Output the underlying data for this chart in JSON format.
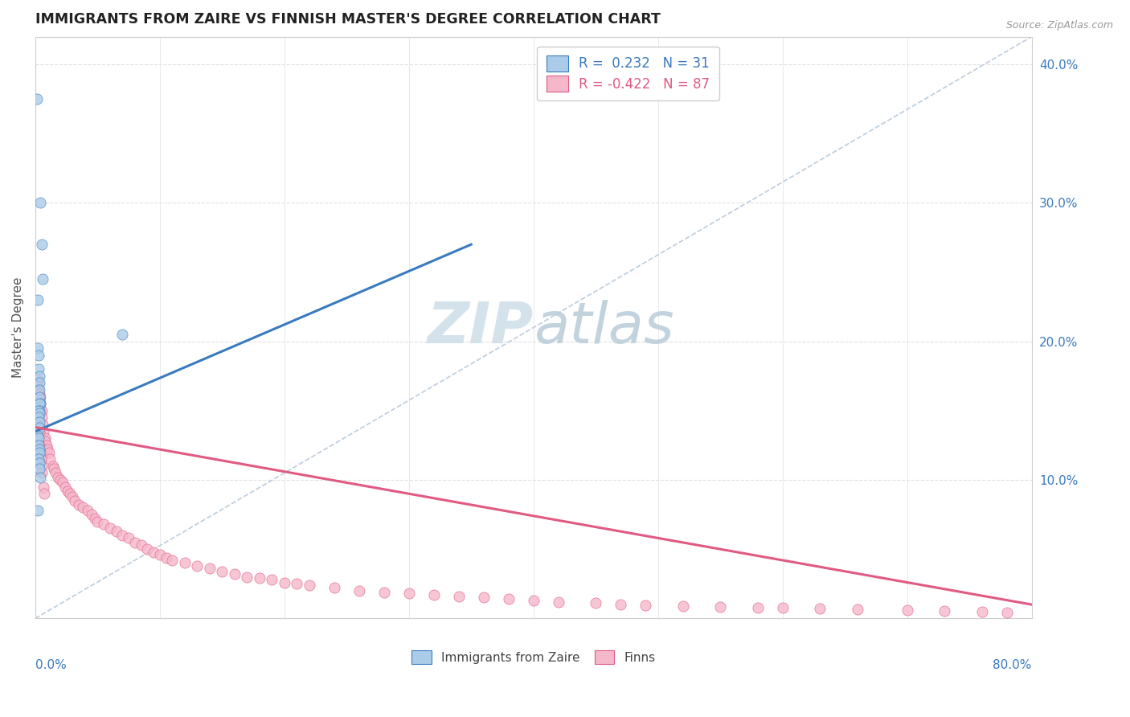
{
  "title": "IMMIGRANTS FROM ZAIRE VS FINNISH MASTER'S DEGREE CORRELATION CHART",
  "source_text": "Source: ZipAtlas.com",
  "ylabel": "Master's Degree",
  "legend_blue_label": "Immigrants from Zaire",
  "legend_pink_label": "Finns",
  "blue_color": "#aacce8",
  "pink_color": "#f5b8cb",
  "blue_line_color": "#3a7abf",
  "pink_line_color": "#e05a82",
  "dot_alpha": 0.8,
  "background_color": "#ffffff",
  "title_color": "#222222",
  "axis_color": "#cccccc",
  "grid_color": "#e0e0e0",
  "diag_color": "#bbccdd",
  "watermark_color": "#dde8f0",
  "blue_scatter_x": [
    0.15,
    0.42,
    0.55,
    0.6,
    0.18,
    0.22,
    0.25,
    0.28,
    0.3,
    0.32,
    0.35,
    0.3,
    0.38,
    0.3,
    0.32,
    0.28,
    0.33,
    0.25,
    0.3,
    0.35,
    0.2,
    0.28,
    7.0,
    0.28,
    0.32,
    0.3,
    0.25,
    0.3,
    0.32,
    0.38,
    0.22
  ],
  "blue_scatter_y": [
    37.5,
    30.0,
    27.0,
    24.5,
    23.0,
    19.5,
    19.0,
    18.0,
    17.5,
    17.0,
    16.5,
    16.0,
    15.5,
    15.5,
    15.0,
    15.0,
    14.8,
    14.5,
    14.2,
    13.8,
    13.2,
    13.0,
    20.5,
    12.5,
    12.2,
    12.0,
    11.5,
    11.2,
    10.8,
    10.2,
    7.8
  ],
  "pink_scatter_x": [
    0.18,
    0.22,
    0.28,
    0.32,
    0.38,
    0.42,
    0.5,
    0.55,
    0.6,
    0.68,
    0.75,
    0.8,
    0.9,
    1.0,
    1.1,
    1.2,
    1.4,
    1.5,
    1.6,
    1.8,
    2.0,
    2.2,
    2.4,
    2.6,
    2.8,
    3.0,
    3.2,
    3.5,
    3.8,
    4.2,
    4.5,
    4.8,
    5.0,
    5.5,
    6.0,
    6.5,
    7.0,
    7.5,
    8.0,
    8.5,
    9.0,
    9.5,
    10.0,
    10.5,
    11.0,
    12.0,
    13.0,
    14.0,
    15.0,
    16.0,
    17.0,
    18.0,
    19.0,
    20.0,
    21.0,
    22.0,
    24.0,
    26.0,
    28.0,
    30.0,
    32.0,
    34.0,
    36.0,
    38.0,
    40.0,
    42.0,
    45.0,
    47.0,
    49.0,
    52.0,
    55.0,
    58.0,
    60.0,
    63.0,
    66.0,
    70.0,
    73.0,
    76.0,
    78.0,
    0.3,
    0.35,
    0.4,
    0.45,
    0.5,
    0.55,
    0.65,
    0.7
  ],
  "pink_scatter_y": [
    17.2,
    16.8,
    16.5,
    16.2,
    16.0,
    15.5,
    15.0,
    14.5,
    14.0,
    13.5,
    13.0,
    12.8,
    12.5,
    12.2,
    12.0,
    11.5,
    11.0,
    10.8,
    10.5,
    10.2,
    10.0,
    9.8,
    9.5,
    9.2,
    9.0,
    8.8,
    8.5,
    8.2,
    8.0,
    7.8,
    7.5,
    7.2,
    7.0,
    6.8,
    6.5,
    6.3,
    6.0,
    5.8,
    5.5,
    5.3,
    5.0,
    4.8,
    4.6,
    4.4,
    4.2,
    4.0,
    3.8,
    3.6,
    3.4,
    3.2,
    3.0,
    2.9,
    2.8,
    2.6,
    2.5,
    2.4,
    2.2,
    2.0,
    1.9,
    1.8,
    1.7,
    1.6,
    1.5,
    1.4,
    1.3,
    1.2,
    1.1,
    1.0,
    0.95,
    0.9,
    0.85,
    0.8,
    0.75,
    0.7,
    0.65,
    0.6,
    0.55,
    0.5,
    0.45,
    13.5,
    12.5,
    12.0,
    11.5,
    11.0,
    10.5,
    9.5,
    9.0
  ],
  "xmin": 0.0,
  "xmax": 80.0,
  "ymin": 0.0,
  "ymax": 42.0,
  "ytick_vals": [
    10,
    20,
    30,
    40
  ],
  "blue_line_x0": 0.0,
  "blue_line_x1": 35.0,
  "blue_line_y0": 13.5,
  "blue_line_y1": 27.0,
  "pink_line_x0": 0.0,
  "pink_line_x1": 80.0,
  "pink_line_y0": 13.8,
  "pink_line_y1": 1.0,
  "diag_line_x0": 0.0,
  "diag_line_x1": 80.0,
  "diag_line_y0": 0.0,
  "diag_line_y1": 42.0
}
